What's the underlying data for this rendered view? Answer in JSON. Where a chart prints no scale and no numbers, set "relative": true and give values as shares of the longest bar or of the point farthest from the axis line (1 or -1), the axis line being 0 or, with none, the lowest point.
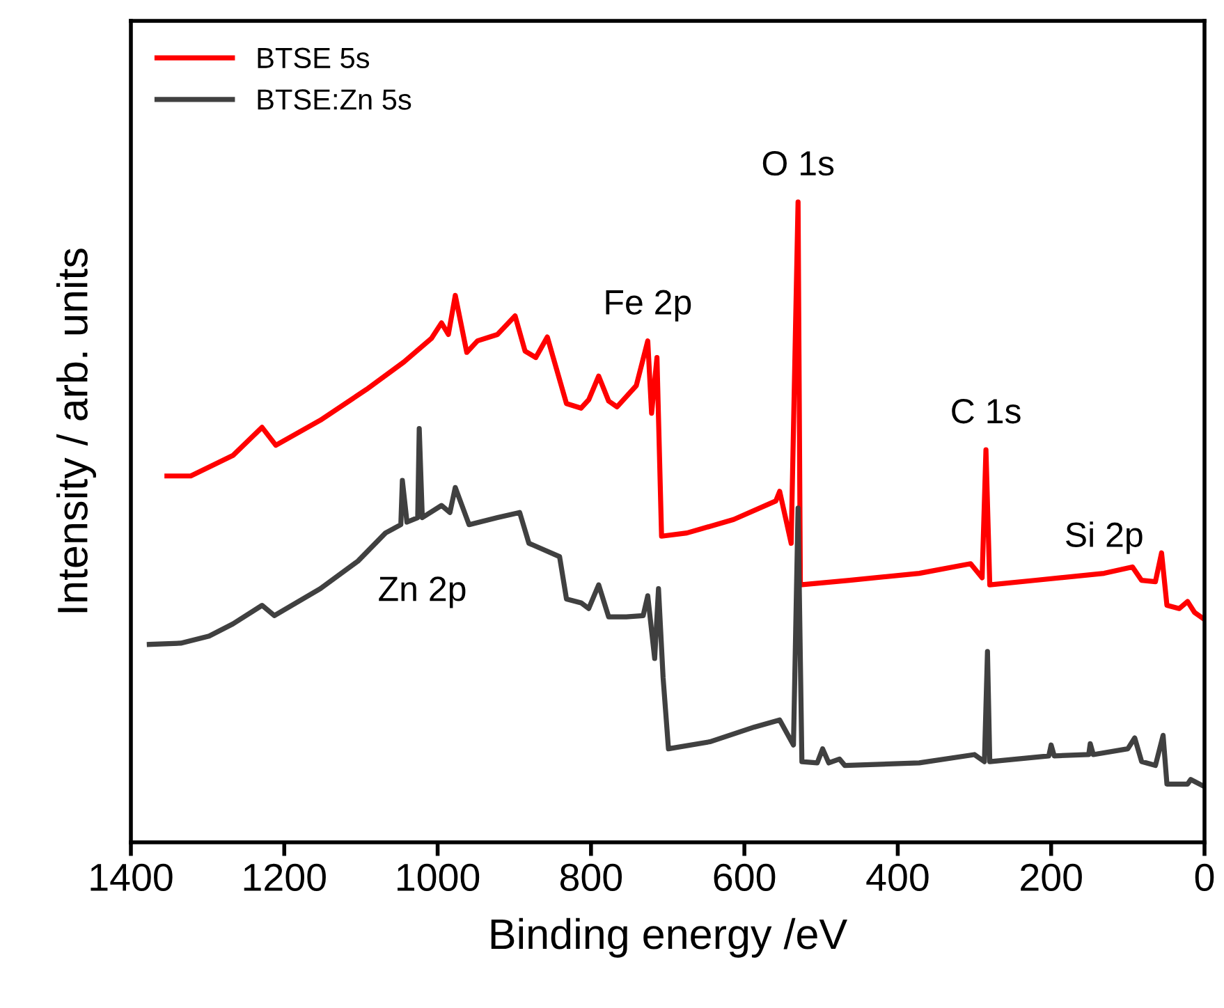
{
  "chart_data": {
    "type": "line",
    "relative": true,
    "xlabel": "Binding energy /eV",
    "ylabel": "Intensity / arb. units",
    "xlim": [
      1400,
      0
    ],
    "xticks": [
      1400,
      1200,
      1000,
      800,
      600,
      400,
      200,
      0
    ],
    "tick_labels": "x",
    "grid": false,
    "legend": "top left",
    "series": [
      {
        "name": "BTSE 5s",
        "color": "#ff0000",
        "x": [
          1353,
          1322,
          1267,
          1229,
          1211,
          1153,
          1093,
          1044,
          1008,
          995,
          986,
          977,
          962,
          948,
          922,
          899,
          886,
          872,
          857,
          832,
          813,
          803,
          790,
          777,
          766,
          741,
          726,
          721,
          714,
          708,
          675,
          614,
          559,
          554,
          539,
          530,
          527,
          463,
          372,
          305,
          290,
          285,
          280,
          222,
          131,
          94,
          82,
          64,
          56,
          49,
          33,
          22,
          13,
          0
        ],
        "values": [
          0.572,
          0.572,
          0.604,
          0.648,
          0.62,
          0.659,
          0.707,
          0.75,
          0.787,
          0.811,
          0.793,
          0.854,
          0.765,
          0.783,
          0.793,
          0.822,
          0.767,
          0.757,
          0.789,
          0.685,
          0.678,
          0.691,
          0.728,
          0.689,
          0.68,
          0.713,
          0.783,
          0.67,
          0.757,
          0.478,
          0.483,
          0.504,
          0.533,
          0.548,
          0.467,
          1.0,
          0.402,
          0.409,
          0.42,
          0.435,
          0.413,
          0.613,
          0.402,
          0.409,
          0.42,
          0.43,
          0.409,
          0.407,
          0.452,
          0.37,
          0.365,
          0.376,
          0.359,
          0.348
        ]
      },
      {
        "name": "BTSE:Zn 5s",
        "color": "#404040",
        "x": [
          1376,
          1335,
          1298,
          1267,
          1229,
          1213,
          1153,
          1104,
          1068,
          1048,
          1046,
          1040,
          1026,
          1024,
          1020,
          995,
          984,
          977,
          959,
          922,
          893,
          881,
          862,
          841,
          832,
          813,
          803,
          790,
          777,
          754,
          732,
          726,
          717,
          712,
          706,
          699,
          645,
          587,
          554,
          536,
          530,
          525,
          505,
          498,
          490,
          476,
          469,
          372,
          300,
          287,
          283,
          280,
          203,
          200,
          196,
          151,
          149,
          145,
          100,
          91,
          82,
          64,
          54,
          49,
          22,
          18,
          0
        ],
        "values": [
          0.309,
          0.311,
          0.322,
          0.341,
          0.37,
          0.354,
          0.396,
          0.439,
          0.483,
          0.496,
          0.565,
          0.5,
          0.507,
          0.646,
          0.507,
          0.526,
          0.515,
          0.554,
          0.496,
          0.507,
          0.515,
          0.467,
          0.457,
          0.446,
          0.38,
          0.374,
          0.365,
          0.402,
          0.352,
          0.352,
          0.354,
          0.385,
          0.287,
          0.396,
          0.257,
          0.146,
          0.157,
          0.18,
          0.191,
          0.152,
          0.522,
          0.126,
          0.124,
          0.146,
          0.124,
          0.13,
          0.12,
          0.124,
          0.137,
          0.126,
          0.298,
          0.126,
          0.135,
          0.152,
          0.135,
          0.137,
          0.154,
          0.137,
          0.146,
          0.163,
          0.126,
          0.12,
          0.167,
          0.091,
          0.091,
          0.098,
          0.087
        ]
      }
    ],
    "annotations": [
      {
        "text": "O 1s",
        "x": 530,
        "y": 1.0
      },
      {
        "text": "Fe 2p",
        "x": 726,
        "y": 0.783
      },
      {
        "text": "C 1s",
        "x": 285,
        "y": 0.613
      },
      {
        "text": "Si 2p",
        "x": 131,
        "y": 0.42
      },
      {
        "text": "Zn 2p",
        "x": 1020,
        "y": 0.507
      }
    ]
  }
}
